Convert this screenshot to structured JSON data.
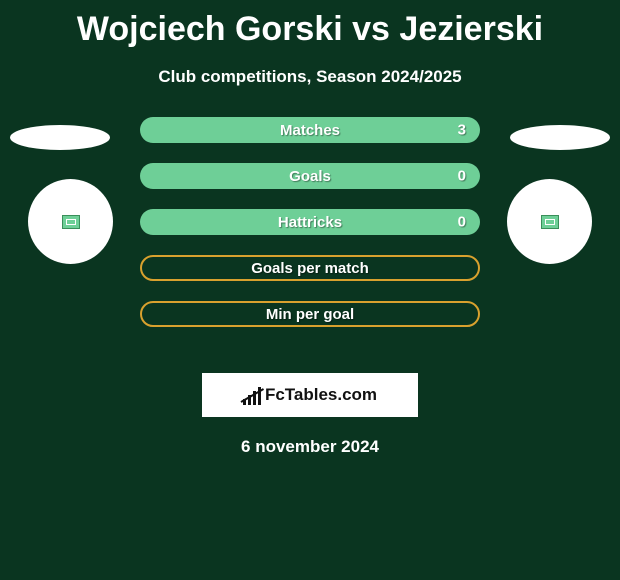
{
  "title": "Wojciech Gorski vs Jezierski",
  "subtitle": "Club competitions, Season 2024/2025",
  "date_line": "6 november 2024",
  "brand": "FcTables.com",
  "colors": {
    "background": "#0a3520",
    "row_fill": "#6ecf97",
    "row_border": "#d9a12e",
    "text": "#ffffff",
    "brand_bg": "#ffffff",
    "brand_text": "#111111"
  },
  "typography": {
    "title_fontsize": 34,
    "title_weight": 800,
    "subtitle_fontsize": 17,
    "row_label_fontsize": 15,
    "date_fontsize": 17
  },
  "rows": [
    {
      "label": "Matches",
      "style": "filled",
      "right": "3"
    },
    {
      "label": "Goals",
      "style": "filled",
      "right": "0"
    },
    {
      "label": "Hattricks",
      "style": "filled",
      "right": "0"
    },
    {
      "label": "Goals per match",
      "style": "hollow"
    },
    {
      "label": "Min per goal",
      "style": "hollow"
    }
  ]
}
